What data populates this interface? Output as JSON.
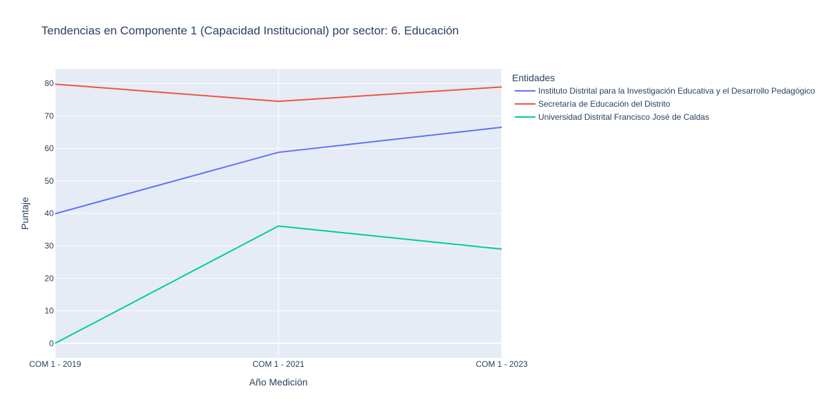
{
  "chart_data": {
    "type": "line",
    "title": "Tendencias en Componente 1 (Capacidad Institucional) por sector: 6. Educación",
    "xlabel": "Año Medición",
    "ylabel": "Puntaje",
    "categories": [
      "COM 1 - 2019",
      "COM 1 - 2021",
      "COM 1 - 2023"
    ],
    "yticks": [
      0,
      10,
      20,
      30,
      40,
      50,
      60,
      70,
      80
    ],
    "ylim": [
      -4.5,
      84.5
    ],
    "grid": true,
    "legend_title": "Entidades",
    "legend_position": "right",
    "plot_bg": "#e5ecf6",
    "series": [
      {
        "name": "Instituto Distrital para la Investigación Educativa y el Desarrollo Pedagógico",
        "color": "#636efa",
        "values": [
          39.9,
          58.8,
          66.5
        ]
      },
      {
        "name": "Secretaría de Educación del Distrito",
        "color": "#ef553b",
        "values": [
          79.8,
          74.5,
          78.9
        ]
      },
      {
        "name": "Universidad Distrital Francisco José de Caldas",
        "color": "#00cc96",
        "values": [
          0.0,
          36.1,
          29.0
        ]
      }
    ]
  }
}
